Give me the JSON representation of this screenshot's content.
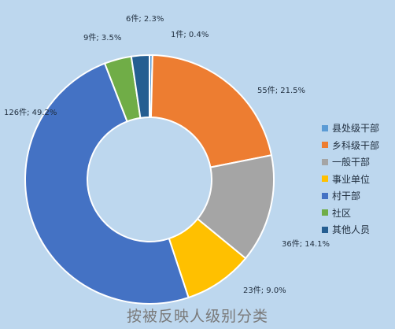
{
  "chart_data": {
    "type": "pie",
    "donut": true,
    "title": "按被反映人级别分类",
    "legend_position": "right",
    "slices": [
      {
        "name": "县处级干部",
        "value": 1,
        "percent": "0.4%",
        "label": "1件; 0.4%",
        "color": "#5b9bd5"
      },
      {
        "name": "乡科级干部",
        "value": 55,
        "percent": "21.5%",
        "label": "55件; 21.5%",
        "color": "#ed7d31"
      },
      {
        "name": "一般干部",
        "value": 36,
        "percent": "14.1%",
        "label": "36件; 14.1%",
        "color": "#a5a5a5"
      },
      {
        "name": "事业单位",
        "value": 23,
        "percent": "9.0%",
        "label": "23件; 9.0%",
        "color": "#ffc000"
      },
      {
        "name": "村干部",
        "value": 126,
        "percent": "49.2%",
        "label": "126件; 49.2%",
        "color": "#4472c4"
      },
      {
        "name": "社区",
        "value": 9,
        "percent": "3.5%",
        "label": "9件; 3.5%",
        "color": "#70ad47"
      },
      {
        "name": "其他人员",
        "value": 6,
        "percent": "2.3%",
        "label": "6件; 2.3%",
        "color": "#255e91"
      }
    ]
  }
}
